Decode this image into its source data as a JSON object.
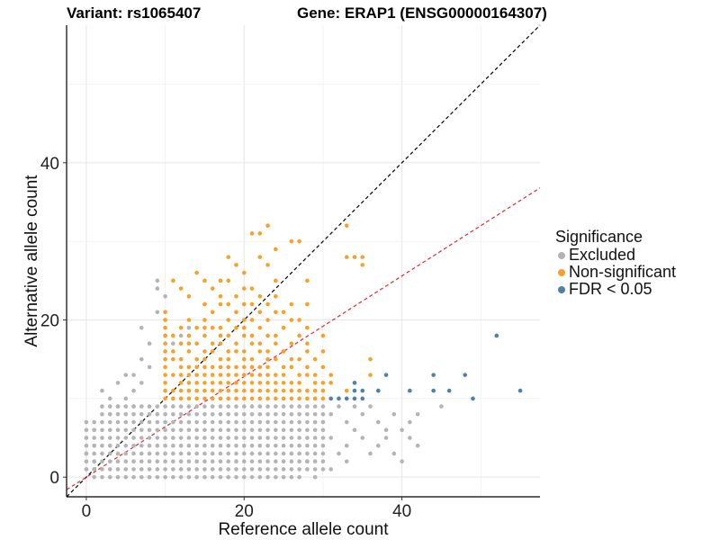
{
  "chart_data": {
    "type": "scatter",
    "title_left": "Variant: rs1065407",
    "title_right": "Gene: ERAP1 (ENSG00000164307)",
    "xlabel": "Reference allele count",
    "ylabel": "Alternative allele count",
    "xlim": [
      -2.5,
      57.5
    ],
    "ylim": [
      -2.5,
      57.5
    ],
    "xticks": [
      0,
      20,
      40
    ],
    "yticks": [
      0,
      20,
      40
    ],
    "grid": true,
    "reference_lines": [
      {
        "name": "identity",
        "slope": 1.0,
        "intercept": 0,
        "style": "dashed",
        "color": "#000000"
      },
      {
        "name": "expected-ratio",
        "slope": 0.64,
        "intercept": 0,
        "style": "dashed",
        "color": "#e8242b"
      }
    ],
    "legend": {
      "title": "Significance",
      "position": "right",
      "items": [
        {
          "label": "Excluded",
          "color": "#b4b4b4"
        },
        {
          "label": "Non-significant",
          "color": "#f7a128"
        },
        {
          "label": "FDR < 0.05",
          "color": "#4f80a8"
        }
      ]
    },
    "series": [
      {
        "name": "Excluded",
        "color": "#b4b4b4",
        "grid_cloud": {
          "ref_max": 30,
          "alt_max": 9,
          "description": "dense lattice of integer points with alt 0-9 and ref 0-30, plus small-ref cloud"
        },
        "points": [
          [
            0,
            7
          ],
          [
            0,
            5
          ],
          [
            0,
            3
          ],
          [
            0,
            1
          ],
          [
            1,
            1
          ],
          [
            1,
            2
          ],
          [
            1,
            4
          ],
          [
            1,
            6
          ],
          [
            2,
            11
          ],
          [
            3,
            10
          ],
          [
            4,
            12
          ],
          [
            5,
            13
          ],
          [
            6,
            11
          ],
          [
            6,
            13
          ],
          [
            7,
            15
          ],
          [
            7,
            19
          ],
          [
            8,
            17
          ],
          [
            9,
            24
          ],
          [
            9,
            25
          ],
          [
            10,
            18
          ],
          [
            10,
            20
          ],
          [
            10,
            23
          ],
          [
            9,
            21
          ],
          [
            8,
            14
          ],
          [
            7,
            12
          ],
          [
            5,
            10
          ],
          [
            4,
            9
          ],
          [
            3,
            8
          ],
          [
            6,
            9
          ],
          [
            2,
            9
          ],
          [
            11,
            17
          ],
          [
            12,
            18
          ],
          [
            13,
            19
          ],
          [
            31,
            8
          ],
          [
            32,
            9
          ],
          [
            33,
            7
          ],
          [
            34,
            9
          ],
          [
            35,
            8
          ],
          [
            36,
            9
          ],
          [
            37,
            7
          ],
          [
            38,
            6
          ],
          [
            39,
            8
          ],
          [
            40,
            6
          ],
          [
            41,
            7
          ],
          [
            42,
            8
          ],
          [
            41,
            5
          ],
          [
            37,
            4
          ],
          [
            36,
            3
          ],
          [
            39,
            3
          ],
          [
            40,
            2
          ],
          [
            38,
            5
          ],
          [
            35,
            5
          ],
          [
            34,
            6
          ],
          [
            33,
            4
          ],
          [
            32,
            3
          ],
          [
            31,
            5
          ],
          [
            45,
            9
          ],
          [
            42,
            4
          ],
          [
            33,
            2
          ],
          [
            31,
            1
          ],
          [
            28,
            2
          ],
          [
            29,
            0
          ]
        ]
      },
      {
        "name": "Non-significant",
        "color": "#f7a128",
        "points": [
          [
            10,
            10
          ],
          [
            10,
            11
          ],
          [
            10,
            12
          ],
          [
            10,
            13
          ],
          [
            10,
            14
          ],
          [
            10,
            15
          ],
          [
            10,
            16
          ],
          [
            10,
            17
          ],
          [
            10,
            18
          ],
          [
            10,
            19
          ],
          [
            10,
            20
          ],
          [
            10,
            21
          ],
          [
            11,
            10
          ],
          [
            11,
            11
          ],
          [
            11,
            13
          ],
          [
            11,
            15
          ],
          [
            11,
            16
          ],
          [
            11,
            18
          ],
          [
            11,
            25
          ],
          [
            12,
            10
          ],
          [
            12,
            11
          ],
          [
            12,
            12
          ],
          [
            12,
            13
          ],
          [
            12,
            14
          ],
          [
            12,
            15
          ],
          [
            12,
            17
          ],
          [
            12,
            19
          ],
          [
            12,
            24
          ],
          [
            13,
            10
          ],
          [
            13,
            11
          ],
          [
            13,
            12
          ],
          [
            13,
            13
          ],
          [
            13,
            14
          ],
          [
            13,
            16
          ],
          [
            13,
            17
          ],
          [
            13,
            18
          ],
          [
            13,
            20
          ],
          [
            13,
            23
          ],
          [
            14,
            10
          ],
          [
            14,
            11
          ],
          [
            14,
            12
          ],
          [
            14,
            13
          ],
          [
            14,
            14
          ],
          [
            14,
            15
          ],
          [
            14,
            17
          ],
          [
            14,
            19
          ],
          [
            14,
            26
          ],
          [
            15,
            10
          ],
          [
            15,
            11
          ],
          [
            15,
            12
          ],
          [
            15,
            13
          ],
          [
            15,
            14
          ],
          [
            15,
            15
          ],
          [
            15,
            16
          ],
          [
            15,
            18
          ],
          [
            15,
            19
          ],
          [
            15,
            20
          ],
          [
            15,
            22
          ],
          [
            15,
            25
          ],
          [
            16,
            10
          ],
          [
            16,
            11
          ],
          [
            16,
            12
          ],
          [
            16,
            13
          ],
          [
            16,
            14
          ],
          [
            16,
            16
          ],
          [
            16,
            17
          ],
          [
            16,
            19
          ],
          [
            16,
            21
          ],
          [
            16,
            24
          ],
          [
            17,
            10
          ],
          [
            17,
            11
          ],
          [
            17,
            12
          ],
          [
            17,
            13
          ],
          [
            17,
            14
          ],
          [
            17,
            15
          ],
          [
            17,
            17
          ],
          [
            17,
            18
          ],
          [
            17,
            19
          ],
          [
            17,
            22
          ],
          [
            17,
            23
          ],
          [
            17,
            25
          ],
          [
            18,
            10
          ],
          [
            18,
            11
          ],
          [
            18,
            12
          ],
          [
            18,
            13
          ],
          [
            18,
            14
          ],
          [
            18,
            15
          ],
          [
            18,
            16
          ],
          [
            18,
            18
          ],
          [
            18,
            20
          ],
          [
            18,
            22
          ],
          [
            18,
            25
          ],
          [
            18,
            28
          ],
          [
            19,
            10
          ],
          [
            19,
            11
          ],
          [
            19,
            12
          ],
          [
            19,
            13
          ],
          [
            19,
            14
          ],
          [
            19,
            16
          ],
          [
            19,
            17
          ],
          [
            19,
            19
          ],
          [
            19,
            21
          ],
          [
            19,
            23
          ],
          [
            19,
            27
          ],
          [
            20,
            10
          ],
          [
            20,
            11
          ],
          [
            20,
            12
          ],
          [
            20,
            13
          ],
          [
            20,
            14
          ],
          [
            20,
            15
          ],
          [
            20,
            16
          ],
          [
            20,
            18
          ],
          [
            20,
            19
          ],
          [
            20,
            20
          ],
          [
            20,
            22
          ],
          [
            20,
            24
          ],
          [
            20,
            26
          ],
          [
            21,
            10
          ],
          [
            21,
            11
          ],
          [
            21,
            12
          ],
          [
            21,
            13
          ],
          [
            21,
            14
          ],
          [
            21,
            15
          ],
          [
            21,
            17
          ],
          [
            21,
            18
          ],
          [
            21,
            20
          ],
          [
            21,
            22
          ],
          [
            21,
            24
          ],
          [
            21,
            31
          ],
          [
            22,
            10
          ],
          [
            22,
            11
          ],
          [
            22,
            12
          ],
          [
            22,
            13
          ],
          [
            22,
            14
          ],
          [
            22,
            16
          ],
          [
            22,
            17
          ],
          [
            22,
            19
          ],
          [
            22,
            21
          ],
          [
            22,
            23
          ],
          [
            22,
            28
          ],
          [
            22,
            31
          ],
          [
            23,
            10
          ],
          [
            23,
            11
          ],
          [
            23,
            12
          ],
          [
            23,
            13
          ],
          [
            23,
            14
          ],
          [
            23,
            15
          ],
          [
            23,
            16
          ],
          [
            23,
            18
          ],
          [
            23,
            20
          ],
          [
            23,
            22
          ],
          [
            23,
            27
          ],
          [
            23,
            32
          ],
          [
            24,
            10
          ],
          [
            24,
            11
          ],
          [
            24,
            12
          ],
          [
            24,
            13
          ],
          [
            24,
            15
          ],
          [
            24,
            17
          ],
          [
            24,
            18
          ],
          [
            24,
            21
          ],
          [
            24,
            23
          ],
          [
            24,
            25
          ],
          [
            24,
            29
          ],
          [
            25,
            10
          ],
          [
            25,
            11
          ],
          [
            25,
            12
          ],
          [
            25,
            13
          ],
          [
            25,
            14
          ],
          [
            25,
            16
          ],
          [
            25,
            19
          ],
          [
            25,
            21
          ],
          [
            26,
            10
          ],
          [
            26,
            11
          ],
          [
            26,
            12
          ],
          [
            26,
            14
          ],
          [
            26,
            15
          ],
          [
            26,
            17
          ],
          [
            26,
            20
          ],
          [
            26,
            22
          ],
          [
            26,
            30
          ],
          [
            27,
            10
          ],
          [
            27,
            11
          ],
          [
            27,
            12
          ],
          [
            27,
            13
          ],
          [
            27,
            15
          ],
          [
            27,
            18
          ],
          [
            27,
            20
          ],
          [
            27,
            30
          ],
          [
            28,
            10
          ],
          [
            28,
            11
          ],
          [
            28,
            13
          ],
          [
            28,
            14
          ],
          [
            28,
            16
          ],
          [
            28,
            17
          ],
          [
            28,
            19
          ],
          [
            28,
            22
          ],
          [
            28,
            25
          ],
          [
            29,
            10
          ],
          [
            29,
            11
          ],
          [
            29,
            12
          ],
          [
            29,
            13
          ],
          [
            29,
            15
          ],
          [
            30,
            10
          ],
          [
            30,
            11
          ],
          [
            30,
            12
          ],
          [
            30,
            14
          ],
          [
            30,
            16
          ],
          [
            30,
            18
          ],
          [
            31,
            12
          ],
          [
            31,
            13
          ],
          [
            33,
            10
          ],
          [
            33,
            11
          ],
          [
            34,
            12
          ],
          [
            34,
            28
          ],
          [
            35,
            27
          ],
          [
            35,
            28
          ],
          [
            33,
            32
          ],
          [
            33,
            28
          ],
          [
            36,
            13
          ],
          [
            36,
            15
          ],
          [
            37,
            11
          ]
        ]
      },
      {
        "name": "FDR < 0.05",
        "color": "#4f80a8",
        "points": [
          [
            31,
            10
          ],
          [
            32,
            10
          ],
          [
            33,
            10
          ],
          [
            34,
            10
          ],
          [
            34,
            11
          ],
          [
            34,
            12
          ],
          [
            35,
            10
          ],
          [
            35,
            11
          ],
          [
            37,
            11
          ],
          [
            38,
            13
          ],
          [
            41,
            11
          ],
          [
            44,
            11
          ],
          [
            44,
            13
          ],
          [
            46,
            11
          ],
          [
            48,
            13
          ],
          [
            49,
            10
          ],
          [
            52,
            18
          ],
          [
            55,
            11
          ]
        ]
      }
    ]
  }
}
